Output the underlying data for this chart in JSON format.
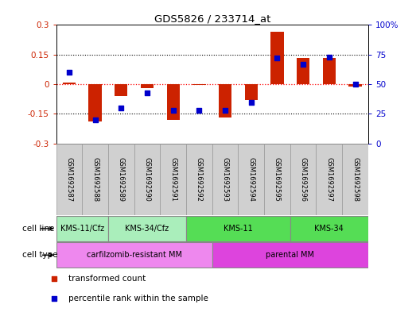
{
  "title": "GDS5826 / 233714_at",
  "samples": [
    "GSM1692587",
    "GSM1692588",
    "GSM1692589",
    "GSM1692590",
    "GSM1692591",
    "GSM1692592",
    "GSM1692593",
    "GSM1692594",
    "GSM1692595",
    "GSM1692596",
    "GSM1692597",
    "GSM1692598"
  ],
  "transformed_count": [
    0.01,
    -0.19,
    -0.06,
    -0.02,
    -0.18,
    -0.005,
    -0.17,
    -0.08,
    0.265,
    0.135,
    0.135,
    -0.01
  ],
  "percentile_rank": [
    60,
    20,
    30,
    43,
    28,
    28,
    28,
    35,
    72,
    67,
    73,
    50
  ],
  "cell_line_groups": [
    {
      "label": "KMS-11/Cfz",
      "start": 0,
      "end": 2,
      "color": "#aaeebb"
    },
    {
      "label": "KMS-34/Cfz",
      "start": 2,
      "end": 5,
      "color": "#aaeebb"
    },
    {
      "label": "KMS-11",
      "start": 5,
      "end": 9,
      "color": "#55dd55"
    },
    {
      "label": "KMS-34",
      "start": 9,
      "end": 12,
      "color": "#55dd55"
    }
  ],
  "cell_type_groups": [
    {
      "label": "carfilzomib-resistant MM",
      "start": 0,
      "end": 6,
      "color": "#ee88ee"
    },
    {
      "label": "parental MM",
      "start": 6,
      "end": 12,
      "color": "#dd44dd"
    }
  ],
  "bar_color": "#cc2200",
  "dot_color": "#0000cc",
  "ylim_left": [
    -0.3,
    0.3
  ],
  "ylim_right": [
    0,
    100
  ],
  "yticks_left": [
    -0.3,
    -0.15,
    0,
    0.15,
    0.3
  ],
  "yticks_right": [
    0,
    25,
    50,
    75,
    100
  ],
  "ytick_labels_left": [
    "-0.3",
    "-0.15",
    "0",
    "0.15",
    "0.3"
  ],
  "ytick_labels_right": [
    "0",
    "25",
    "50",
    "75",
    "100%"
  ],
  "legend_items": [
    {
      "label": "transformed count",
      "color": "#cc2200"
    },
    {
      "label": "percentile rank within the sample",
      "color": "#0000cc"
    }
  ],
  "cell_line_label": "cell line",
  "cell_type_label": "cell type",
  "sample_bg_color": "#d0d0d0",
  "background_color": "#ffffff"
}
